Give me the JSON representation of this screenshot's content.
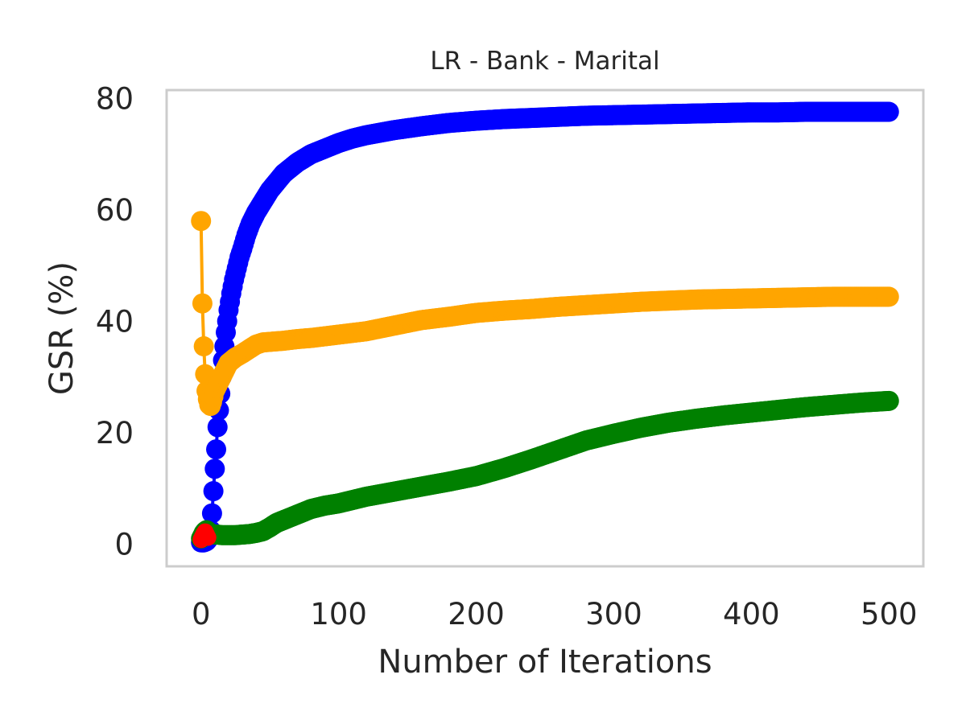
{
  "chart_data": {
    "type": "line",
    "title": "LR - Bank - Marital",
    "xlabel": "Number of Iterations",
    "ylabel": "GSR (%)",
    "xlim": [
      -25,
      525
    ],
    "ylim": [
      -4,
      81.5
    ],
    "xticks": [
      0,
      100,
      200,
      300,
      400,
      500
    ],
    "yticks": [
      0,
      20,
      40,
      60,
      80
    ],
    "grid": false,
    "legend": "none",
    "frame_color": "#cccccc",
    "series": [
      {
        "color": "#0000ff",
        "marker": "circle",
        "x": [
          0,
          1,
          2,
          3,
          4,
          5,
          6,
          7,
          8,
          9,
          10,
          11,
          12,
          13,
          14,
          15,
          16,
          17,
          18,
          19,
          20,
          22,
          24,
          26,
          28,
          30,
          33,
          36,
          40,
          45,
          50,
          55,
          60,
          65,
          70,
          80,
          90,
          100,
          110,
          120,
          140,
          160,
          180,
          200,
          220,
          240,
          260,
          280,
          300,
          320,
          340,
          360,
          380,
          400,
          420,
          440,
          460,
          480,
          500
        ],
        "y": [
          0.3,
          0.3,
          0.3,
          0.4,
          0.5,
          0.8,
          1.2,
          2.5,
          5.5,
          9.5,
          13.5,
          17,
          21,
          24,
          27,
          30,
          33,
          35.5,
          38,
          40,
          42,
          45,
          47.5,
          49.5,
          51.5,
          53,
          55.5,
          57.5,
          59.5,
          61.5,
          63.5,
          65,
          66.5,
          67.5,
          68.5,
          70,
          71,
          72,
          72.8,
          73.4,
          74.3,
          75,
          75.6,
          76,
          76.3,
          76.5,
          76.7,
          76.9,
          77,
          77.1,
          77.2,
          77.3,
          77.4,
          77.5,
          77.5,
          77.6,
          77.6,
          77.6,
          77.6
        ]
      },
      {
        "color": "#ffa500",
        "marker": "circle",
        "x": [
          0,
          1,
          2,
          3,
          4,
          5,
          6,
          7,
          8,
          9,
          10,
          12,
          14,
          16,
          18,
          20,
          25,
          30,
          35,
          40,
          45,
          50,
          60,
          70,
          80,
          90,
          100,
          120,
          140,
          160,
          180,
          200,
          220,
          240,
          260,
          280,
          300,
          320,
          340,
          360,
          380,
          400,
          420,
          440,
          460,
          480,
          500
        ],
        "y": [
          58,
          43.2,
          35.5,
          30.5,
          27.5,
          26,
          25,
          24.8,
          25.5,
          26.5,
          27.5,
          28.5,
          29.5,
          30.5,
          31.5,
          32.5,
          33.5,
          34.2,
          35,
          35.8,
          36.2,
          36.3,
          36.5,
          36.8,
          37,
          37.3,
          37.6,
          38.2,
          39.2,
          40.2,
          40.8,
          41.5,
          41.9,
          42.2,
          42.6,
          42.9,
          43.2,
          43.5,
          43.7,
          43.9,
          44,
          44.1,
          44.2,
          44.3,
          44.4,
          44.4,
          44.4
        ]
      },
      {
        "color": "#008000",
        "marker": "circle",
        "x": [
          0,
          1,
          2,
          3,
          4,
          5,
          6,
          8,
          10,
          12,
          15,
          20,
          25,
          30,
          35,
          40,
          45,
          50,
          55,
          60,
          70,
          80,
          90,
          100,
          110,
          120,
          140,
          160,
          180,
          200,
          220,
          240,
          260,
          280,
          300,
          320,
          340,
          360,
          380,
          400,
          420,
          440,
          460,
          480,
          500
        ],
        "y": [
          1,
          1.5,
          2,
          2.3,
          2.5,
          2.3,
          2,
          1.8,
          1.7,
          1.7,
          1.6,
          1.6,
          1.6,
          1.7,
          1.8,
          2,
          2.3,
          3,
          3.8,
          4.3,
          5.3,
          6.3,
          6.9,
          7.3,
          7.9,
          8.5,
          9.4,
          10.3,
          11.2,
          12.2,
          13.6,
          15.2,
          16.9,
          18.6,
          19.8,
          20.9,
          21.8,
          22.5,
          23.1,
          23.6,
          24.1,
          24.6,
          25,
          25.4,
          25.7
        ]
      },
      {
        "color": "#ff0000",
        "marker": "circle",
        "x": [
          0,
          1,
          2,
          3,
          4,
          5
        ],
        "y": [
          0.8,
          1.3,
          1.8,
          2.2,
          1.7,
          1.2
        ]
      }
    ]
  }
}
